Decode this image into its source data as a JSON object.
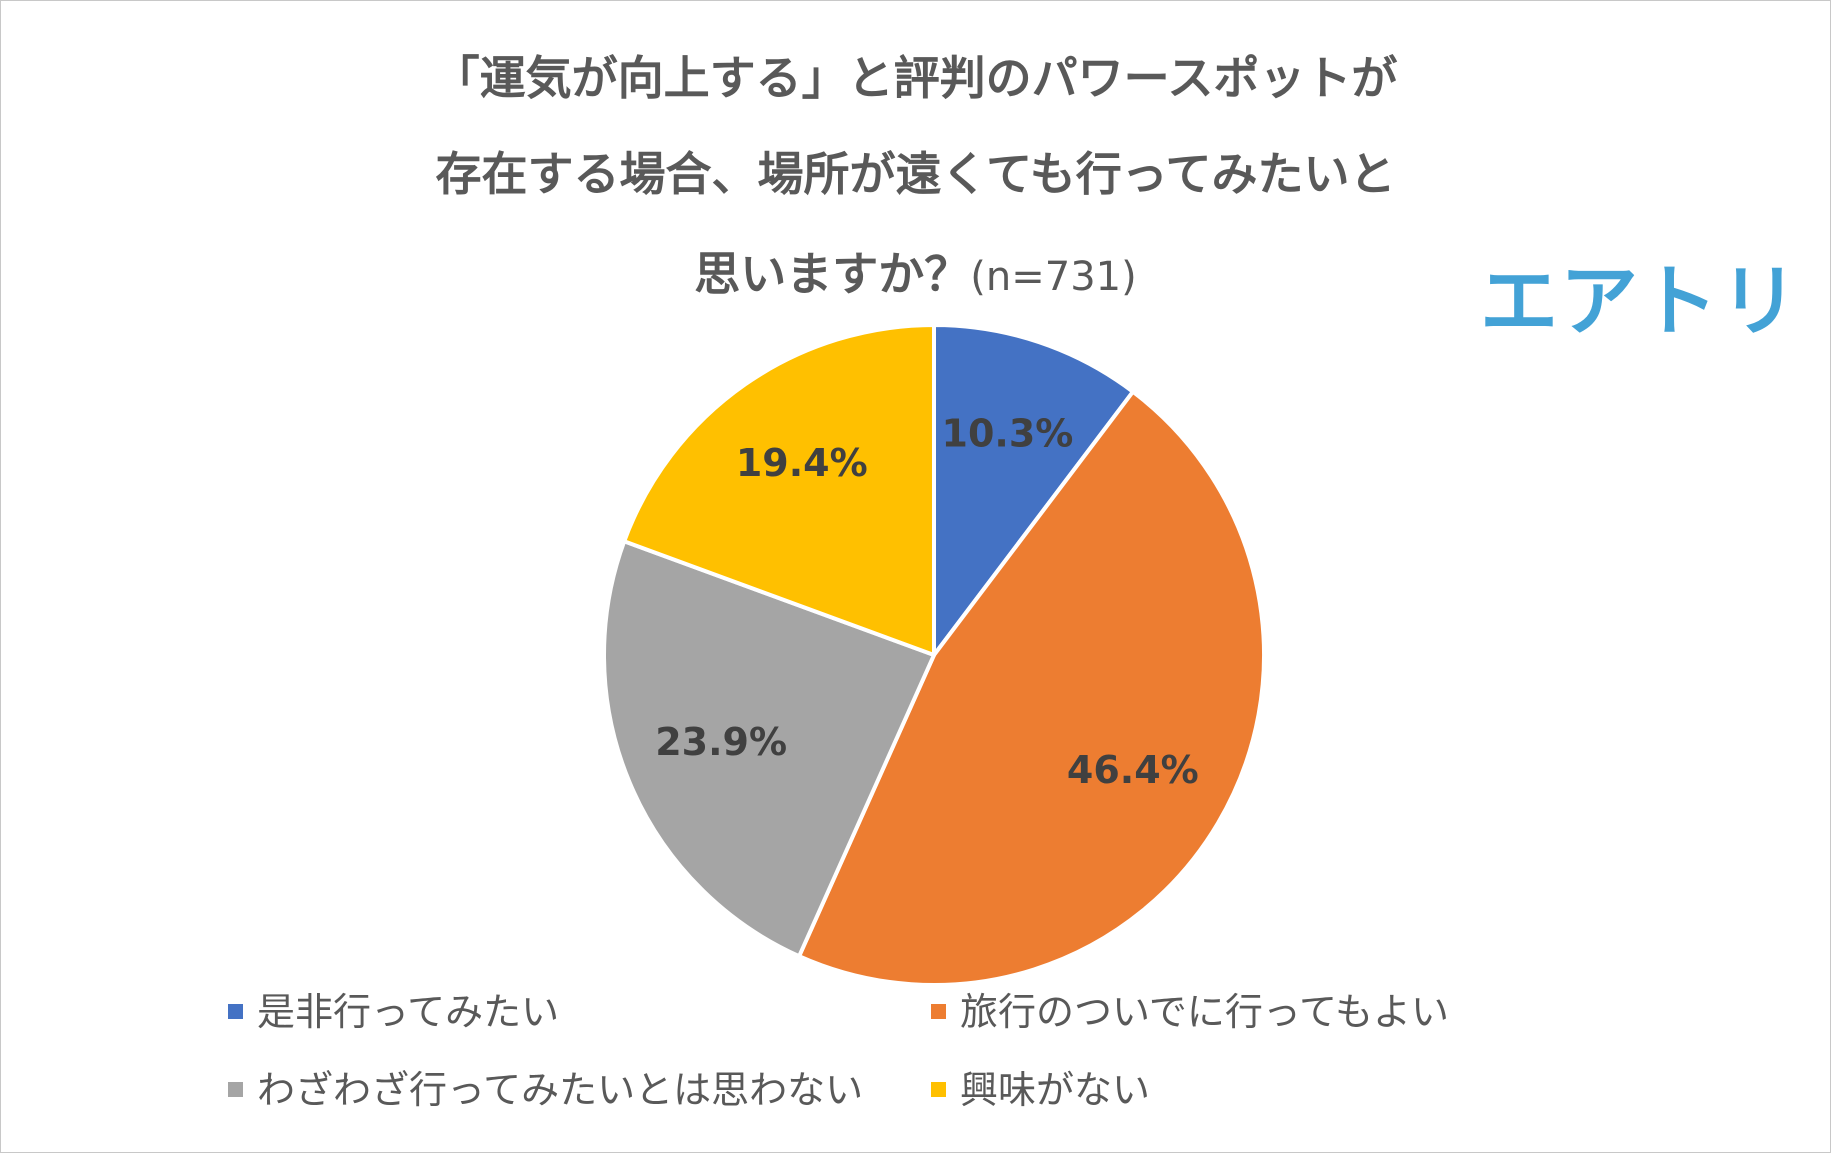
{
  "title": {
    "line1": "「運気が向上する」と評判のパワースポットが",
    "line2": "存在する場合、場所が遠くても行ってみたいと",
    "line3": "思いますか？",
    "n_label": "(n=731)"
  },
  "logo": {
    "text": "エアトリ",
    "color": "#43a2d6"
  },
  "chart_data": {
    "type": "pie",
    "title": "「運気が向上する」と評判のパワースポットが存在する場合、場所が遠くても行ってみたいと思いますか？(n=731)",
    "series": [
      {
        "slices": [
          {
            "label": "是非行ってみたい",
            "value": 10.3,
            "display": "10.3%",
            "color": "#4472c4"
          },
          {
            "label": "旅行のついでに行ってもよい",
            "value": 46.4,
            "display": "46.4%",
            "color": "#ed7d31"
          },
          {
            "label": "わざわざ行ってみたいとは思わない",
            "value": 23.9,
            "display": "23.9%",
            "color": "#a5a5a5"
          },
          {
            "label": "興味がない",
            "value": 19.4,
            "display": "19.4%",
            "color": "#ffc000"
          }
        ]
      }
    ],
    "start_angle_deg": 0,
    "direction": "clockwise",
    "legend_position": "bottom"
  }
}
